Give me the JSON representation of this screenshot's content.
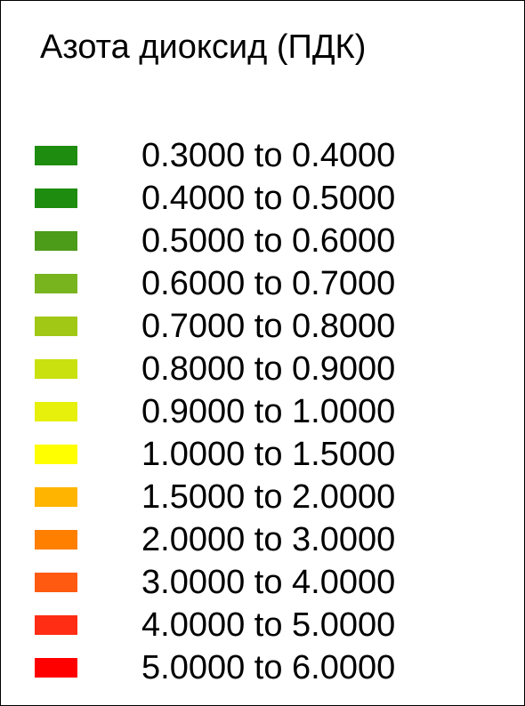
{
  "legend": {
    "title": "Азота диоксид (ПДК)",
    "items": [
      {
        "label": "0.3000 to 0.4000",
        "color": "#1e8c0f"
      },
      {
        "label": "0.4000 to 0.5000",
        "color": "#1e8c0f"
      },
      {
        "label": "0.5000 to 0.6000",
        "color": "#4c9b19"
      },
      {
        "label": "0.6000 to 0.7000",
        "color": "#78b41e"
      },
      {
        "label": "0.7000 to 0.8000",
        "color": "#a0c814"
      },
      {
        "label": "0.8000 to 0.9000",
        "color": "#c8e10f"
      },
      {
        "label": "0.9000 to 1.0000",
        "color": "#e6f00a"
      },
      {
        "label": "1.0000 to 1.5000",
        "color": "#ffff00"
      },
      {
        "label": "1.5000 to 2.0000",
        "color": "#ffb400"
      },
      {
        "label": "2.0000 to 3.0000",
        "color": "#ff7f00"
      },
      {
        "label": "3.0000 to 4.0000",
        "color": "#ff5a0f"
      },
      {
        "label": "4.0000 to 5.0000",
        "color": "#ff2d14"
      },
      {
        "label": "5.0000 to 6.0000",
        "color": "#ff0000"
      }
    ]
  }
}
